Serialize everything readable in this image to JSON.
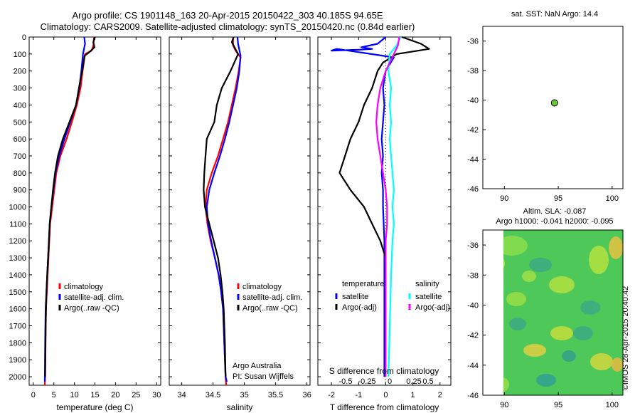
{
  "header": {
    "line1": "Argo profile: CS 1901148_163 20-Apr-2015 20150422_303 40.185S 94.65E",
    "line2": "Climatology: CARS2009. Satellite-adjusted climatology: synTS_20150420.nc (0.84d earlier)"
  },
  "right_titles": {
    "sst": "sat. SST: NaN Argo: 14.4",
    "sla": "Altim. SLA: -0.087",
    "heights": "Argo h1000: -0.041 h2000: -0.095"
  },
  "credit": "©IMOS 28-Apr-2015 20:40:42",
  "colors": {
    "climatology": "#ff0000",
    "satellite": "#0000ff",
    "argo": "#000000",
    "satellite_s": "#00ffff",
    "argo_s": "#ff00ff",
    "marker": "#66cc33"
  },
  "chart_data": [
    {
      "type": "line",
      "id": "temperature",
      "xlabel": "temperature (deg C)",
      "xlim": [
        -1,
        31
      ],
      "xticks": [
        0,
        5,
        10,
        15,
        20,
        25,
        30
      ],
      "ylim": [
        0,
        2050
      ],
      "yticks": [
        0,
        100,
        200,
        300,
        400,
        500,
        600,
        700,
        800,
        900,
        1000,
        1100,
        1200,
        1300,
        1400,
        1500,
        1600,
        1700,
        1800,
        1900,
        2000
      ],
      "legend": [
        "climatology",
        "satellite-adj. clim.",
        "Argo(..raw -QC)"
      ],
      "series": [
        {
          "name": "climatology",
          "color": "#ff0000",
          "x": [
            14.8,
            14.6,
            14.2,
            12.6,
            12.0,
            11.5,
            10.6,
            9.4,
            8.1,
            6.6,
            5.6,
            5.1,
            4.6,
            4.1,
            3.9,
            3.7,
            3.5,
            3.3,
            3.1,
            3.0,
            2.9,
            2.8
          ],
          "y": [
            0,
            50,
            80,
            100,
            200,
            300,
            400,
            500,
            600,
            700,
            800,
            900,
            1000,
            1100,
            1200,
            1300,
            1400,
            1500,
            1600,
            1800,
            2000,
            2050
          ]
        },
        {
          "name": "satellite-adj. clim.",
          "color": "#0000ff",
          "x": [
            12.4,
            12.6,
            12.1,
            11.7,
            11.2,
            10.4,
            9.0,
            7.6,
            6.3,
            5.4,
            4.9,
            4.4,
            4.0,
            3.8,
            3.6,
            3.4,
            3.2,
            3.0,
            2.9,
            2.8
          ],
          "y": [
            0,
            40,
            100,
            200,
            300,
            400,
            500,
            600,
            700,
            800,
            900,
            1000,
            1100,
            1200,
            1300,
            1400,
            1500,
            1600,
            1800,
            2030
          ]
        },
        {
          "name": "Argo(..raw -QC)",
          "color": "#000000",
          "x": [
            15.0,
            14.6,
            14.9,
            13.6,
            12.5,
            11.9,
            11.1,
            10.4,
            8.8,
            7.2,
            6.0,
            5.3,
            4.8,
            4.4,
            4.0,
            3.8,
            3.6,
            3.4,
            3.2,
            3.0,
            2.9
          ],
          "y": [
            0,
            30,
            60,
            90,
            110,
            200,
            300,
            400,
            500,
            600,
            700,
            800,
            900,
            1000,
            1100,
            1200,
            1300,
            1400,
            1500,
            1700,
            2000
          ]
        }
      ]
    },
    {
      "type": "line",
      "id": "salinity",
      "xlabel": "salinity",
      "xlim": [
        33.8,
        36.05
      ],
      "xticks": [
        34,
        34.5,
        35,
        35.5,
        36
      ],
      "xticklabels": [
        "34",
        "34.5",
        "35",
        "35.5",
        "36"
      ],
      "ylim": [
        0,
        2050
      ],
      "legend": [
        "climatology",
        "satellite-adj. clim.",
        "Argo(..raw -QC)"
      ],
      "note": [
        "Argo Australia",
        "PI: Susan Wijffels"
      ],
      "series": [
        {
          "name": "climatology",
          "color": "#ff0000",
          "x": [
            34.82,
            34.82,
            34.86,
            34.94,
            34.91,
            34.86,
            34.8,
            34.74,
            34.66,
            34.58,
            34.48,
            34.4,
            34.38,
            34.41,
            34.46,
            34.53,
            34.59,
            34.63,
            34.66,
            34.68,
            34.7,
            34.71
          ],
          "y": [
            0,
            50,
            80,
            120,
            200,
            300,
            400,
            500,
            600,
            700,
            800,
            900,
            1000,
            1100,
            1200,
            1300,
            1400,
            1500,
            1600,
            1800,
            2000,
            2050
          ]
        },
        {
          "name": "satellite-adj. clim.",
          "color": "#0000ff",
          "x": [
            34.89,
            34.9,
            34.94,
            34.92,
            34.88,
            34.82,
            34.76,
            34.69,
            34.61,
            34.52,
            34.44,
            34.4,
            34.42,
            34.47,
            34.53,
            34.59,
            34.63,
            34.66,
            34.68,
            34.7,
            34.72
          ],
          "y": [
            0,
            40,
            110,
            200,
            300,
            400,
            500,
            600,
            700,
            800,
            900,
            1000,
            1100,
            1200,
            1300,
            1400,
            1500,
            1600,
            1800,
            2000,
            2030
          ]
        },
        {
          "name": "Argo(..raw -QC)",
          "color": "#000000",
          "x": [
            34.83,
            34.8,
            34.9,
            34.78,
            34.64,
            34.56,
            34.52,
            34.4,
            34.38,
            34.36,
            34.35,
            34.37,
            34.44,
            34.51,
            34.58,
            34.62,
            34.65,
            34.67,
            34.69,
            34.7
          ],
          "y": [
            0,
            30,
            100,
            200,
            300,
            400,
            500,
            600,
            700,
            800,
            900,
            1000,
            1100,
            1200,
            1300,
            1400,
            1500,
            1600,
            1800,
            2000
          ]
        }
      ]
    },
    {
      "type": "line",
      "id": "differences",
      "xlabel": "T difference from climatology",
      "xlabel2": "S difference from climatology",
      "xlim": [
        -2.5,
        2.4
      ],
      "xticks": [
        -2,
        -1,
        0,
        1,
        2
      ],
      "s_axis_ticks": [
        "-0.5",
        "-0.25",
        "0",
        "0.25",
        "0.5"
      ],
      "ylim": [
        0,
        2050
      ],
      "legend_temperature_title": "temperature",
      "legend_salinity_title": "salinity",
      "legend": [
        "satellite",
        "Argo(-adj)",
        "satellite",
        "Argo(-adj)"
      ],
      "series": [
        {
          "name": "satellite",
          "group": "temperature",
          "color": "#0000ff",
          "x": [
            0,
            -0.3,
            -0.9,
            -0.5,
            -1.0,
            -2.0,
            -1.8,
            0.3,
            0.0,
            -0.1,
            -0.05,
            -0.1,
            -0.15,
            -0.1,
            -0.15,
            -0.1,
            -0.1,
            -0.05,
            -0.05,
            -0.05,
            -0.05
          ],
          "y": [
            0,
            40,
            60,
            70,
            75,
            80,
            70,
            120,
            200,
            300,
            400,
            500,
            600,
            700,
            800,
            900,
            1000,
            1200,
            1400,
            1700,
            2000
          ]
        },
        {
          "name": "Argo(-adj)",
          "group": "temperature",
          "color": "#000000",
          "x": [
            0.6,
            1.3,
            1.6,
            0.4,
            -0.1,
            -0.3,
            -0.5,
            -0.8,
            -1.0,
            -1.3,
            -1.5,
            -1.7,
            -1.3,
            -0.8,
            -0.5,
            -0.2,
            0.0,
            0.0,
            0.0
          ],
          "y": [
            0,
            40,
            70,
            100,
            150,
            200,
            300,
            400,
            500,
            600,
            700,
            800,
            900,
            1000,
            1100,
            1200,
            1300,
            1500,
            2000
          ]
        },
        {
          "name": "satellite",
          "group": "salinity",
          "color": "#00ffff",
          "x": [
            0.55,
            0.4,
            0.15,
            0.1,
            0.2,
            0.15,
            0.2,
            0.15,
            0.2,
            0.25,
            0.3,
            0.25,
            0.3,
            0.25,
            0.2,
            0.15,
            0.1
          ],
          "y": [
            0,
            50,
            100,
            200,
            300,
            400,
            500,
            600,
            700,
            800,
            900,
            1000,
            1100,
            1200,
            1400,
            1700,
            2000
          ]
        },
        {
          "name": "Argo(-adj)",
          "group": "salinity",
          "color": "#ff00ff",
          "x": [
            0.5,
            0.45,
            0.3,
            0.0,
            -0.2,
            -0.3,
            -0.35,
            -0.3,
            -0.2,
            -0.1,
            0.0,
            0.05,
            0.05,
            0.0,
            0.0,
            0.0,
            0.0
          ],
          "y": [
            0,
            50,
            100,
            200,
            300,
            400,
            500,
            600,
            700,
            800,
            900,
            1000,
            1100,
            1200,
            1400,
            1700,
            2000
          ]
        }
      ]
    },
    {
      "type": "scatter",
      "id": "location",
      "xlim": [
        88,
        101
      ],
      "xticks": [
        90,
        95,
        100
      ],
      "ylim": [
        -46,
        -35
      ],
      "yticks": [
        -36,
        -38,
        -40,
        -42,
        -44,
        -46
      ],
      "points": [
        {
          "x": 94.65,
          "y": -40.185
        }
      ]
    },
    {
      "type": "heatmap",
      "id": "sla_map",
      "xlim": [
        88,
        101
      ],
      "xticks": [
        90,
        95,
        100
      ],
      "ylim": [
        -46,
        -35
      ],
      "yticks": [
        -36,
        -38,
        -40,
        -42,
        -44,
        -46
      ]
    }
  ]
}
